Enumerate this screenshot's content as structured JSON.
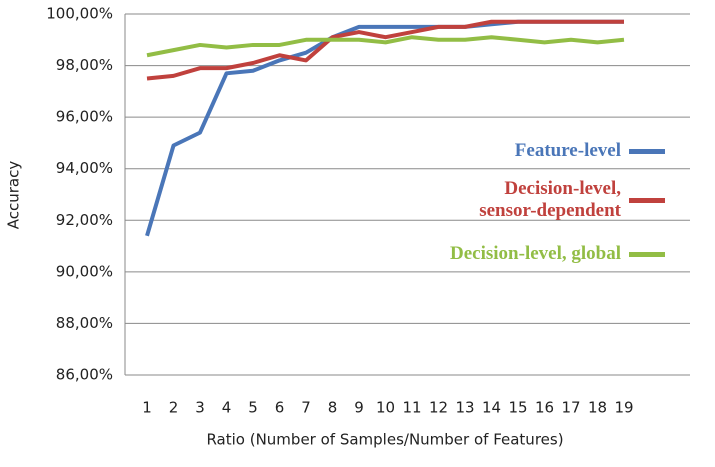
{
  "chart_data": {
    "type": "line",
    "x_label": "Ratio (Number of Samples/Number of Features)",
    "y_label": "Accuracy",
    "categories": [
      "1",
      "2",
      "3",
      "4",
      "5",
      "6",
      "7",
      "8",
      "9",
      "10",
      "11",
      "12",
      "13",
      "14",
      "15",
      "16",
      "17",
      "18",
      "19"
    ],
    "ylim": [
      86,
      100
    ],
    "yticks": [
      {
        "value": 86,
        "label": "86,00%"
      },
      {
        "value": 88,
        "label": "88,00%"
      },
      {
        "value": 90,
        "label": "90,00%"
      },
      {
        "value": 92,
        "label": "92,00%"
      },
      {
        "value": 94,
        "label": "94,00%"
      },
      {
        "value": 96,
        "label": "96,00%"
      },
      {
        "value": 98,
        "label": "98,00%"
      },
      {
        "value": 100,
        "label": "100,00%"
      }
    ],
    "grid": true,
    "series": [
      {
        "name": "Feature-level",
        "color": "#4a76b8",
        "values": [
          91.4,
          94.9,
          95.4,
          97.7,
          97.8,
          98.2,
          98.5,
          99.1,
          99.5,
          99.5,
          99.5,
          99.5,
          99.5,
          99.6,
          99.7,
          99.7,
          99.7,
          99.7,
          99.7
        ]
      },
      {
        "name": "Decision-level, sensor-dependent",
        "color": "#c0413d",
        "values": [
          97.5,
          97.6,
          97.9,
          97.9,
          98.1,
          98.4,
          98.2,
          99.1,
          99.3,
          99.1,
          99.3,
          99.5,
          99.5,
          99.7,
          99.7,
          99.7,
          99.7,
          99.7,
          99.7
        ]
      },
      {
        "name": "Decision-level, global",
        "color": "#92bd45",
        "values": [
          98.4,
          98.6,
          98.8,
          98.7,
          98.8,
          98.8,
          99.0,
          99.0,
          99.0,
          98.9,
          99.1,
          99.0,
          99.0,
          99.1,
          99.0,
          98.9,
          99.0,
          98.9,
          99.0
        ]
      }
    ]
  }
}
